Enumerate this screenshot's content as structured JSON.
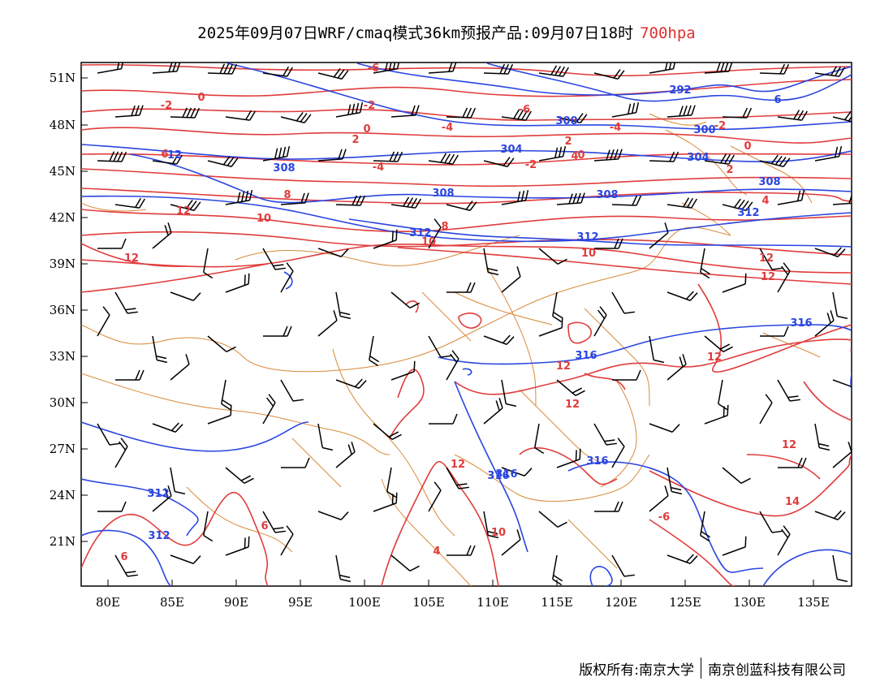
{
  "title": {
    "main": "2025年09月07日WRF/cmaq模式36km预报产品:09月07日18时",
    "level": "700hpa"
  },
  "colors": {
    "height": "#2a45e0",
    "temperature": "#e03c3c",
    "border": "#d98a3a",
    "wind": "#000000",
    "level_text": "#e03030"
  },
  "axes": {
    "lon_ticks": [
      "80E",
      "85E",
      "90E",
      "95E",
      "100E",
      "105E",
      "110E",
      "115E",
      "120E",
      "125E",
      "130E",
      "135E"
    ],
    "lat_ticks": [
      "51N",
      "48N",
      "45N",
      "42N",
      "39N",
      "36N",
      "33N",
      "30N",
      "27N",
      "24N",
      "21N"
    ]
  },
  "height_labels": [
    "292",
    "300",
    "300",
    "304",
    "304",
    "308",
    "308",
    "308",
    "308",
    "312",
    "312",
    "312",
    "312",
    "316",
    "316",
    "316",
    "316",
    "316",
    "6",
    "12",
    "12",
    "312"
  ],
  "temperature_labels": [
    "-6",
    "-2",
    "0",
    "-2",
    "0",
    "2",
    "-4",
    "-4",
    "-6",
    "-4",
    "-2",
    "0",
    "2",
    "4",
    "-2",
    "0",
    "2",
    "4",
    "6",
    "8",
    "8",
    "10",
    "10",
    "10",
    "12",
    "12",
    "12",
    "12",
    "12",
    "12",
    "12",
    "12",
    "14",
    "-6",
    "6",
    "6",
    "4",
    "10",
    "12"
  ],
  "footer": {
    "left": "版权所有:南京大学",
    "right": "南京创蓝科技有限公司"
  }
}
